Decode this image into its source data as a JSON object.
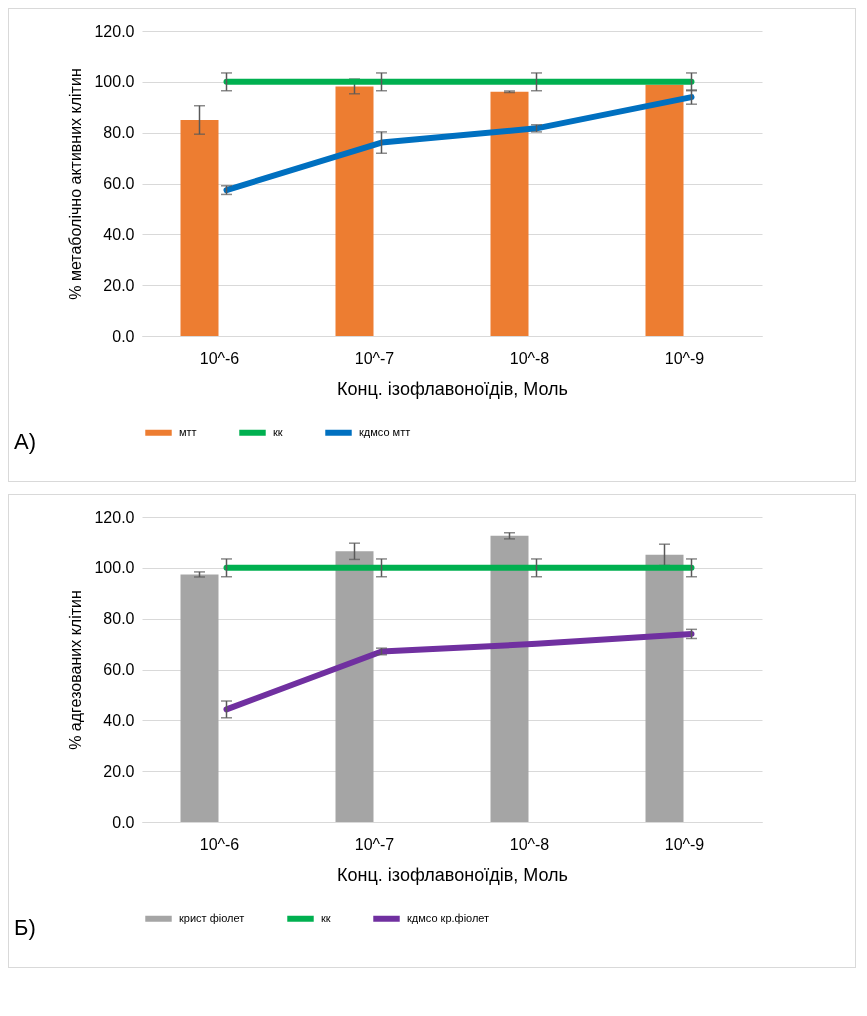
{
  "chart_data": [
    {
      "type": "bar",
      "xlabel": "Конц. ізофлавоноїдів, Моль",
      "ylabel": "% метаболічно активних клітин",
      "annotations": [
        "А)"
      ],
      "categories": [
        "10^-6",
        "10^-7",
        "10^-8",
        "10^-9"
      ],
      "ylim": [
        0,
        120
      ],
      "yticks": [
        {
          "value": 0,
          "label": "0.0"
        },
        {
          "value": 20,
          "label": "20.0"
        },
        {
          "value": 40,
          "label": "40.0"
        },
        {
          "value": 60,
          "label": "60.0"
        },
        {
          "value": 80,
          "label": "80.0"
        },
        {
          "value": 100,
          "label": "100.0"
        },
        {
          "value": 120,
          "label": "120.0"
        }
      ],
      "grid": "y",
      "legend": "bottom",
      "series": [
        {
          "name": "мтт",
          "color": "#ed7d31",
          "values": [
            85.0,
            98.2,
            96.1,
            98.9
          ],
          "errors": [
            5.6,
            2.9,
            0.3,
            null
          ]
        },
        {
          "name": "кк",
          "type": "line",
          "color": "#00b050",
          "values": [
            100,
            100,
            100,
            100
          ],
          "errors": [
            3.5,
            3.5,
            3.5,
            3.5
          ]
        },
        {
          "name": "кдмсо мтт",
          "type": "line",
          "color": "#0070c0",
          "values": [
            57.4,
            76.1,
            81.7,
            94.0
          ],
          "errors": [
            1.7,
            4.2,
            1.4,
            2.8
          ]
        }
      ]
    },
    {
      "type": "bar",
      "xlabel": "Конц. ізофлавоноїдів, Моль",
      "ylabel": "% адгезованих клітин",
      "annotations": [
        "Б)"
      ],
      "categories": [
        "10^-6",
        "10^-7",
        "10^-8",
        "10^-9"
      ],
      "ylim": [
        0,
        120
      ],
      "yticks": [
        {
          "value": 0,
          "label": "0.0"
        },
        {
          "value": 20,
          "label": "20.0"
        },
        {
          "value": 40,
          "label": "40.0"
        },
        {
          "value": 60,
          "label": "60.0"
        },
        {
          "value": 80,
          "label": "80.0"
        },
        {
          "value": 100,
          "label": "100.0"
        },
        {
          "value": 120,
          "label": "120.0"
        }
      ],
      "grid": "y",
      "legend": "bottom",
      "series": [
        {
          "name": "крист фіолет",
          "color": "#a5a5a5",
          "values": [
            97.4,
            106.5,
            112.6,
            105.1
          ],
          "errors": [
            1.0,
            3.2,
            1.2,
            4.2
          ]
        },
        {
          "name": "кк",
          "type": "line",
          "color": "#00b050",
          "values": [
            100,
            100,
            100,
            100
          ],
          "errors": [
            3.5,
            3.5,
            3.5,
            3.5
          ]
        },
        {
          "name": "кдмсо кр.фіолет",
          "type": "line",
          "color": "#7030a0",
          "values": [
            44.3,
            67.1,
            70.1,
            74.0
          ],
          "errors": [
            3.3,
            1.3,
            null,
            1.8
          ]
        }
      ]
    }
  ]
}
